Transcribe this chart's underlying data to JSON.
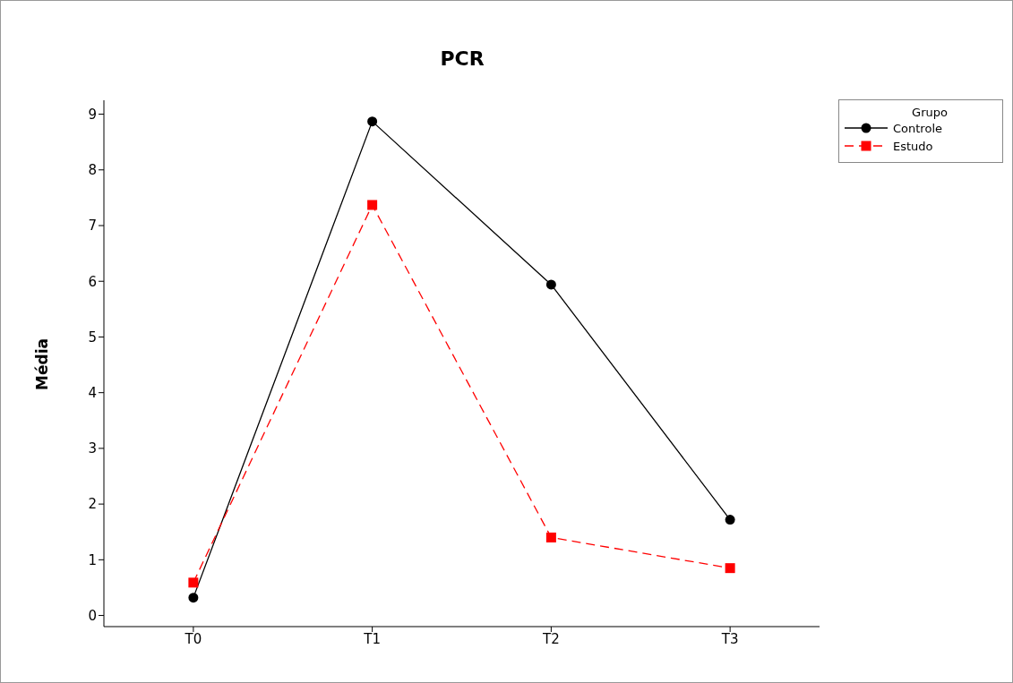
{
  "chart_data": {
    "type": "line",
    "title": "PCR",
    "ylabel": "Média",
    "legend_title": "Grupo",
    "legend": "top right",
    "grid": false,
    "categories": [
      "T0",
      "T1",
      "T2",
      "T3"
    ],
    "ylim": [
      -0.2,
      9.25
    ],
    "yticks": [
      0,
      1,
      2,
      3,
      4,
      5,
      6,
      7,
      8,
      9
    ],
    "series": [
      {
        "name": "Controle",
        "color": "#000000",
        "marker": "circle",
        "line_style": "solid",
        "values": [
          0.32,
          8.87,
          5.94,
          1.72
        ]
      },
      {
        "name": "Estudo",
        "color": "#ff0000",
        "marker": "square",
        "line_style": "dashed",
        "values": [
          0.59,
          7.37,
          1.4,
          0.85
        ]
      }
    ]
  }
}
